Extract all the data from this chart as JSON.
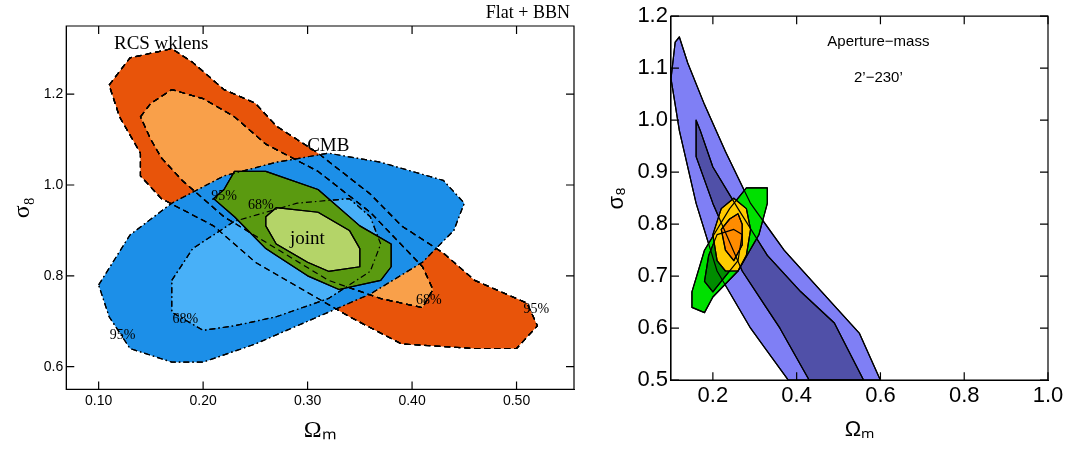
{
  "chart_data": [
    {
      "type": "area",
      "xlabel": "Ωₘ",
      "ylabel": "σ₈",
      "xlim": [
        0.069,
        0.555
      ],
      "ylim": [
        0.55,
        1.35
      ],
      "xticks": [
        {
          "value": 0.1,
          "label": "0.10"
        },
        {
          "value": 0.2,
          "label": "0.20"
        },
        {
          "value": 0.3,
          "label": "0.30"
        },
        {
          "value": 0.4,
          "label": "0.40"
        },
        {
          "value": 0.5,
          "label": "0.50"
        }
      ],
      "yticks": [
        0.6,
        0.8,
        {
          "value": 1,
          "label": "1.0"
        },
        1.2
      ],
      "grid": false,
      "legend": false,
      "series": [
        {
          "color": "#e8540a",
          "line_style": "dashed",
          "x": [
            0.11,
            0.13,
            0.17,
            0.19,
            0.22,
            0.25,
            0.27,
            0.31,
            0.36,
            0.39,
            0.43,
            0.46,
            0.51,
            0.52,
            0.5,
            0.46,
            0.39,
            0.34,
            0.31,
            0.25,
            0.21,
            0.16,
            0.14,
            0.14,
            0.12
          ],
          "values": [
            1.22,
            1.28,
            1.3,
            1.27,
            1.21,
            1.18,
            1.13,
            1.07,
            0.98,
            0.91,
            0.85,
            0.79,
            0.74,
            0.69,
            0.64,
            0.64,
            0.65,
            0.71,
            0.75,
            0.83,
            0.91,
            0.97,
            1.02,
            1.07,
            1.15
          ]
        },
        {
          "color": "#f9a04a",
          "line_style": "dashed",
          "x": [
            0.14,
            0.15,
            0.17,
            0.2,
            0.23,
            0.26,
            0.31,
            0.36,
            0.41,
            0.42,
            0.41,
            0.37,
            0.32,
            0.27,
            0.22,
            0.18,
            0.16,
            0.15
          ],
          "values": [
            1.15,
            1.18,
            1.21,
            1.19,
            1.15,
            1.09,
            1.03,
            0.94,
            0.82,
            0.77,
            0.73,
            0.75,
            0.79,
            0.86,
            0.93,
            1.01,
            1.06,
            1.1
          ]
        },
        {
          "color": "#1c8fe8",
          "line_style": "dotted",
          "x": [
            0.1,
            0.13,
            0.17,
            0.22,
            0.27,
            0.32,
            0.37,
            0.43,
            0.45,
            0.44,
            0.41,
            0.36,
            0.31,
            0.25,
            0.2,
            0.17,
            0.13,
            0.11
          ],
          "values": [
            0.78,
            0.89,
            0.96,
            1.02,
            1.05,
            1.07,
            1.05,
            1.01,
            0.96,
            0.9,
            0.83,
            0.76,
            0.71,
            0.65,
            0.61,
            0.61,
            0.64,
            0.71
          ]
        },
        {
          "color": "#48b0f8",
          "line_style": "dotted",
          "x": [
            0.17,
            0.19,
            0.23,
            0.29,
            0.34,
            0.36,
            0.37,
            0.36,
            0.32,
            0.27,
            0.23,
            0.2,
            0.17
          ],
          "values": [
            0.79,
            0.86,
            0.92,
            0.96,
            0.97,
            0.93,
            0.87,
            0.81,
            0.75,
            0.71,
            0.69,
            0.68,
            0.72
          ]
        },
        {
          "color": "#5a9a10",
          "line_style": "solid",
          "x": [
            0.22,
            0.23,
            0.26,
            0.31,
            0.35,
            0.38,
            0.38,
            0.37,
            0.33,
            0.3,
            0.26,
            0.23,
            0.21
          ],
          "values": [
            0.99,
            1.03,
            1.03,
            0.99,
            0.91,
            0.87,
            0.82,
            0.79,
            0.77,
            0.8,
            0.86,
            0.93,
            0.97
          ]
        },
        {
          "color": "#b4d468",
          "line_style": "solid",
          "x": [
            0.26,
            0.27,
            0.31,
            0.34,
            0.35,
            0.35,
            0.32,
            0.3,
            0.27,
            0.26
          ],
          "values": [
            0.93,
            0.95,
            0.94,
            0.9,
            0.86,
            0.82,
            0.81,
            0.83,
            0.87,
            0.91
          ]
        }
      ],
      "annotations": [
        "Flat + BBN",
        "RCS wklens",
        "CMB",
        "joint",
        "95%",
        "68%",
        {
          "text": "95%",
          "x": 0.22,
          "y": 0.975
        },
        {
          "text": "68%",
          "x": 0.416,
          "y": 0.745
        },
        {
          "text": "68%",
          "x": 0.183,
          "y": 0.705
        },
        {
          "text": "95%",
          "x": 0.123,
          "y": 0.669
        }
      ]
    },
    {
      "type": "area",
      "xlabel": "Ωₘ",
      "ylabel": "σ₈",
      "xlim": [
        0.1,
        1
      ],
      "ylim": [
        0.5,
        1.2
      ],
      "xticks": [
        0.2,
        0.4,
        0.6,
        0.8,
        {
          "value": 1,
          "label": "1.0"
        }
      ],
      "yticks": [
        0.5,
        0.6,
        0.7,
        0.8,
        0.9,
        {
          "value": 1,
          "label": "1.0"
        },
        1.1,
        1.2
      ],
      "grid": false,
      "legend": false,
      "series": [
        {
          "color": "#7f7ff5",
          "line_style": "solid",
          "x": [
            0.11,
            0.12,
            0.14,
            0.18,
            0.23,
            0.29,
            0.37,
            0.46,
            0.55,
            0.6,
            0.38,
            0.29,
            0.21,
            0.16,
            0.12,
            0.1
          ],
          "values": [
            1.15,
            1.16,
            1.11,
            1.03,
            0.94,
            0.84,
            0.75,
            0.67,
            0.59,
            0.5,
            0.5,
            0.6,
            0.71,
            0.84,
            0.98,
            1.08
          ]
        },
        {
          "color": "#5050a8",
          "line_style": "solid",
          "x": [
            0.16,
            0.17,
            0.2,
            0.26,
            0.33,
            0.41,
            0.49,
            0.56,
            0.43,
            0.36,
            0.27,
            0.2,
            0.16,
            0.16
          ],
          "values": [
            1,
            0.98,
            0.91,
            0.83,
            0.74,
            0.67,
            0.61,
            0.5,
            0.5,
            0.6,
            0.71,
            0.84,
            0.93,
            0.98
          ]
        },
        {
          "color": "#00e000",
          "line_style": "solid",
          "x": [
            0.15,
            0.15,
            0.18,
            0.24,
            0.28,
            0.33,
            0.33,
            0.31,
            0.26,
            0.2,
            0.18
          ],
          "values": [
            0.64,
            0.67,
            0.75,
            0.83,
            0.87,
            0.87,
            0.84,
            0.78,
            0.71,
            0.66,
            0.63
          ]
        },
        {
          "color": "#008c00",
          "line_style": "solid",
          "x": [
            0.18,
            0.19,
            0.21,
            0.25,
            0.27,
            0.26,
            0.23,
            0.2
          ],
          "values": [
            0.69,
            0.74,
            0.78,
            0.79,
            0.78,
            0.73,
            0.7,
            0.67
          ]
        },
        {
          "color": "#ffcc00",
          "line_style": "solid",
          "x": [
            0.2,
            0.22,
            0.25,
            0.28,
            0.29,
            0.28,
            0.26,
            0.23,
            0.21
          ],
          "values": [
            0.78,
            0.83,
            0.85,
            0.83,
            0.79,
            0.74,
            0.71,
            0.71,
            0.73
          ]
        },
        {
          "color": "#ff8c00",
          "line_style": "solid",
          "x": [
            0.22,
            0.24,
            0.26,
            0.27,
            0.27,
            0.25,
            0.23
          ],
          "values": [
            0.79,
            0.81,
            0.82,
            0.8,
            0.76,
            0.73,
            0.75
          ]
        }
      ],
      "annotations": [
        "Aperture−mass",
        "2’−230’"
      ]
    }
  ]
}
